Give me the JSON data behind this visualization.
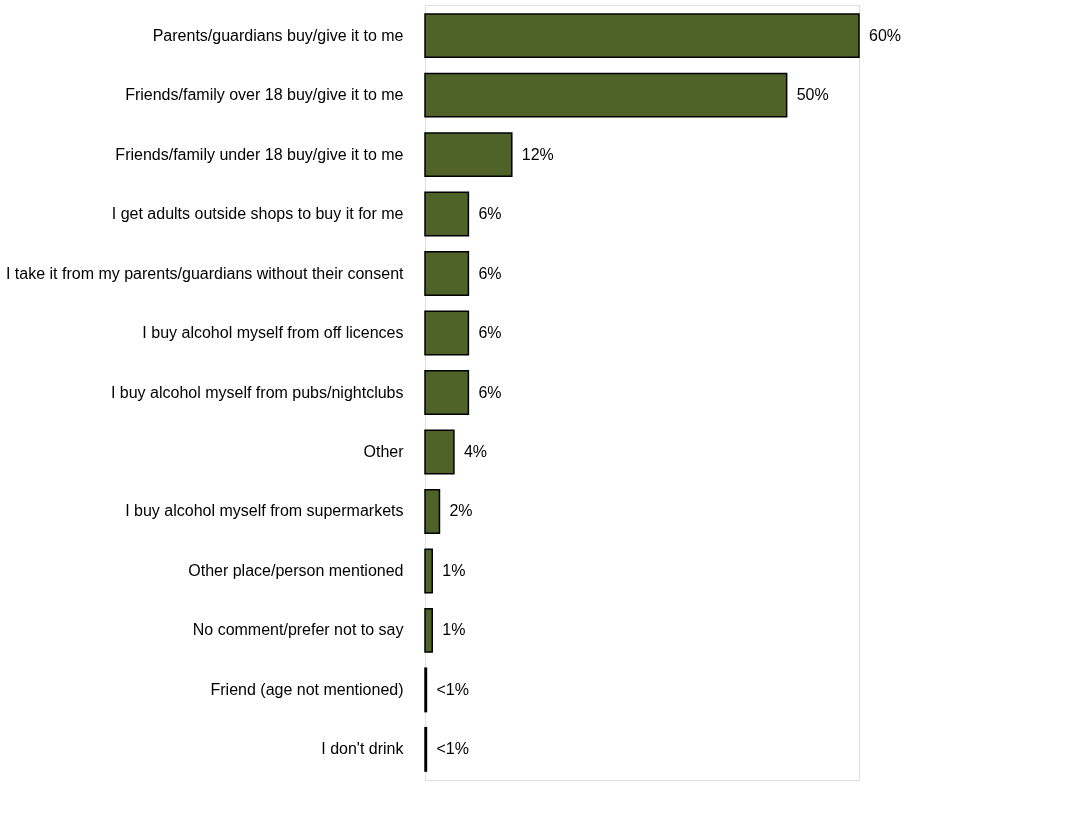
{
  "chart_data": {
    "type": "bar",
    "orientation": "horizontal",
    "categories": [
      "Parents/guardians buy/give it to me",
      "Friends/family over 18 buy/give it to me",
      "Friends/family under 18 buy/give it to me",
      "I get adults outside shops to buy it for me",
      "I take it from my parents/guardians without their consent",
      "I buy alcohol myself from off licences",
      "I buy alcohol myself from pubs/nightclubs",
      "Other",
      "I buy alcohol myself from supermarkets",
      "Other place/person mentioned",
      "No comment/prefer not to say",
      "Friend (age not mentioned)",
      "I don't drink"
    ],
    "values": [
      60,
      50,
      12,
      6,
      6,
      6,
      6,
      4,
      2,
      1,
      1,
      0.2,
      0.2
    ],
    "value_labels": [
      "60%",
      "50%",
      "12%",
      "6%",
      "6%",
      "6%",
      "6%",
      "4%",
      "2%",
      "1%",
      "1%",
      "<1%",
      "<1%"
    ],
    "color": "#4f6228"
  }
}
